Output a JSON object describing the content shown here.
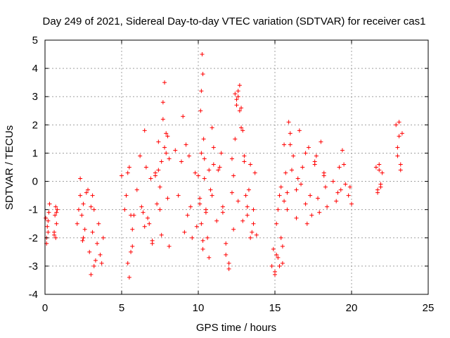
{
  "chart_data": {
    "type": "scatter",
    "title": "Day 249 of 2021, Sidereal Day-to-day VTEC variation (SDTVAR) for receiver cas1",
    "xlabel": "GPS time / hours",
    "ylabel": "SDTVAR / TECUs",
    "xlim": [
      0,
      25
    ],
    "ylim": [
      -4,
      5
    ],
    "xticks": [
      "0",
      "5",
      "10",
      "15",
      "20",
      "25"
    ],
    "yticks": [
      "-4",
      "-3",
      "-2",
      "-1",
      "0",
      "1",
      "2",
      "3",
      "4",
      "5"
    ],
    "grid": true,
    "marker": "+",
    "color": "#ff0000",
    "series": [
      {
        "name": "SDTVAR",
        "x": [
          0.05,
          0.1,
          0.15,
          0.2,
          0.25,
          0.3,
          0.1,
          0.2,
          0.6,
          0.65,
          0.7,
          0.75,
          0.8,
          0.6,
          0.7,
          0.75,
          2.1,
          2.2,
          2.3,
          2.4,
          2.5,
          2.6,
          2.7,
          2.8,
          2.3,
          2.5,
          2.45,
          2.9,
          3.0,
          3.1,
          3.2,
          3.3,
          3.4,
          3.5,
          3.6,
          3.7,
          3.2,
          3.1,
          3.0,
          3.8,
          5.0,
          5.2,
          5.3,
          5.4,
          5.5,
          5.6,
          5.7,
          5.6,
          5.5,
          5.4,
          5.7,
          5.8,
          6.0,
          6.2,
          6.4,
          6.5,
          6.6,
          6.8,
          7.0,
          7.2,
          7.3,
          7.4,
          7.5,
          7.6,
          7.7,
          7.8,
          7.9,
          8.0,
          8.1,
          7.5,
          7.6,
          7.8,
          7.4,
          7.7,
          7.9,
          8.0,
          8.1,
          6.3,
          6.5,
          7.0,
          7.2,
          6.7,
          6.9,
          8.5,
          8.7,
          8.9,
          9.1,
          9.2,
          9.3,
          9.4,
          9.0,
          9.5,
          9.6,
          9.8,
          9.9,
          10.0,
          10.1,
          10.15,
          10.2,
          10.25,
          10.3,
          10.35,
          10.4,
          10.5,
          10.6,
          10.7,
          10.8,
          10.9,
          11.0,
          10.2,
          10.3,
          10.4,
          10.1,
          10.2,
          10.3,
          10.5,
          10.7,
          10.9,
          11.0,
          11.2,
          11.4,
          11.6,
          11.8,
          12.0,
          12.2,
          12.3,
          12.4,
          12.5,
          12.6,
          12.7,
          12.8,
          12.9,
          13.0,
          13.1,
          13.2,
          13.3,
          13.4,
          13.5,
          13.6,
          13.7,
          13.8,
          12.4,
          12.5,
          12.6,
          12.7,
          12.8,
          12.3,
          12.6,
          12.9,
          13.0,
          13.2,
          13.4,
          13.6,
          11.5,
          11.8,
          12.0,
          12.2,
          11.3,
          11.6,
          14.8,
          14.9,
          15.0,
          15.1,
          15.2,
          15.3,
          15.4,
          15.5,
          15.6,
          15.7,
          15.8,
          15.9,
          16.0,
          16.2,
          16.4,
          16.6,
          16.8,
          17.0,
          17.2,
          17.4,
          17.6,
          17.8,
          18.0,
          18.2,
          18.4,
          15.0,
          15.1,
          15.2,
          15.3,
          15.4,
          15.5,
          15.8,
          16.1,
          16.4,
          16.7,
          17.0,
          17.3,
          17.6,
          17.9,
          18.2,
          15.6,
          16.0,
          16.5,
          17.1,
          17.7,
          18.3,
          18.8,
          19.0,
          19.2,
          19.3,
          19.4,
          19.6,
          19.8,
          20.0,
          19.5,
          19.1,
          19.9,
          21.6,
          21.7,
          21.8,
          21.9,
          22.0,
          21.7,
          21.8,
          21.9,
          22.9,
          23.0,
          23.1,
          23.2,
          23.3,
          23.0,
          23.1,
          23.2
        ],
        "y": [
          -1.3,
          -2.0,
          -1.6,
          -1.8,
          -1.1,
          -0.8,
          -2.2,
          -1.4,
          -1.9,
          -1.2,
          -0.9,
          -1.5,
          -1.0,
          -1.8,
          -2.0,
          -1.1,
          -1.5,
          -1.0,
          -0.5,
          -1.2,
          -2.0,
          -1.7,
          -0.4,
          -0.3,
          0.1,
          -0.8,
          -2.1,
          -2.5,
          -3.3,
          -1.8,
          -1.0,
          -2.8,
          -2.2,
          -1.5,
          -2.6,
          -2.9,
          -3.0,
          -0.5,
          -0.9,
          -2.0,
          0.2,
          -1.0,
          -0.5,
          0.3,
          0.5,
          -1.2,
          -1.7,
          -2.5,
          -3.4,
          -2.9,
          -2.3,
          -1.2,
          -0.3,
          0.9,
          -1.1,
          1.8,
          0.5,
          -1.5,
          -2.1,
          0.2,
          -0.8,
          1.4,
          -0.2,
          0.7,
          2.2,
          3.5,
          1.0,
          1.6,
          0.8,
          -1.0,
          -1.9,
          1.2,
          0.4,
          2.8,
          1.7,
          -0.6,
          -2.3,
          -0.9,
          -1.6,
          -2.2,
          0.3,
          -1.3,
          0.1,
          1.1,
          -0.5,
          0.7,
          -1.8,
          1.3,
          -1.2,
          0.9,
          2.3,
          -0.9,
          -2.0,
          0.3,
          -1.6,
          0.2,
          -0.6,
          2.5,
          3.2,
          4.5,
          3.8,
          1.5,
          0.8,
          -1.0,
          -2.0,
          -2.7,
          -0.3,
          1.9,
          0.6,
          -1.5,
          -2.4,
          0.1,
          -0.8,
          1.0,
          -2.1,
          -1.1,
          0.4,
          -0.5,
          1.2,
          -1.4,
          0.5,
          -0.9,
          -2.2,
          -2.9,
          0.8,
          -1.7,
          1.5,
          2.9,
          3.2,
          3.4,
          2.6,
          1.8,
          0.9,
          -0.5,
          -1.2,
          -0.3,
          0.6,
          -1.8,
          -1.0,
          0.3,
          -1.9,
          3.1,
          2.7,
          3.0,
          2.5,
          1.9,
          0.2,
          -0.7,
          -1.4,
          0.7,
          -0.9,
          -2.0,
          -1.5,
          1.0,
          -2.6,
          -3.1,
          -0.4,
          0.4,
          -1.1,
          -3.0,
          -2.4,
          -3.2,
          -1.5,
          -2.7,
          -0.5,
          -2.0,
          -2.9,
          1.3,
          0.3,
          -0.4,
          2.1,
          1.7,
          0.9,
          -0.3,
          1.8,
          0.5,
          -0.8,
          1.2,
          -1.2,
          0.6,
          -0.6,
          1.4,
          0.3,
          -0.9,
          -3.3,
          -2.6,
          -1.0,
          -3.0,
          -0.2,
          -2.3,
          -1.0,
          0.4,
          -1.3,
          -0.1,
          1.0,
          -0.5,
          0.7,
          -1.1,
          0.2,
          -0.7,
          1.3,
          0.1,
          -1.5,
          0.9,
          -0.2,
          0.0,
          -0.7,
          0.5,
          -0.3,
          1.1,
          -0.1,
          -0.5,
          -0.8,
          0.6,
          -0.4,
          -0.2,
          0.5,
          -0.3,
          0.4,
          -0.1,
          0.3,
          -0.4,
          0.6,
          -0.2,
          2.0,
          1.2,
          1.6,
          0.6,
          1.7,
          0.9,
          2.1,
          0.4
        ]
      }
    ]
  }
}
